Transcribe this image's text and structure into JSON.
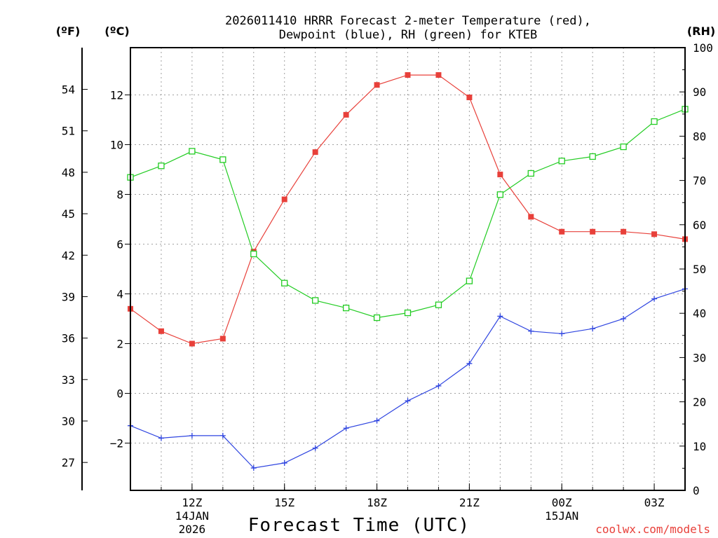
{
  "chart_data": {
    "type": "line",
    "title_line1": "2026011410 HRRR Forecast 2-meter Temperature (red),",
    "title_line2": "Dewpoint (blue), RH (green) for KTEB",
    "xlabel": "Forecast Time (UTC)",
    "credit": "coolwx.com/models",
    "unit_f": "(ºF)",
    "unit_c": "(ºC)",
    "unit_rh": "(RH)",
    "x_hours": [
      10,
      11,
      12,
      13,
      14,
      15,
      16,
      17,
      18,
      19,
      20,
      21,
      22,
      23,
      24,
      25,
      26,
      27,
      28
    ],
    "xlim": [
      10,
      28
    ],
    "ylim_c": [
      -3.9,
      13.9
    ],
    "ylim_rh": [
      0,
      100
    ],
    "x_ticks": [
      {
        "hour": 12,
        "label": "12Z",
        "date": "14JAN",
        "year": "2026"
      },
      {
        "hour": 15,
        "label": "15Z",
        "date": "",
        "year": ""
      },
      {
        "hour": 18,
        "label": "18Z",
        "date": "",
        "year": ""
      },
      {
        "hour": 21,
        "label": "21Z",
        "date": "",
        "year": ""
      },
      {
        "hour": 24,
        "label": "00Z",
        "date": "15JAN",
        "year": ""
      },
      {
        "hour": 27,
        "label": "03Z",
        "date": "",
        "year": ""
      }
    ],
    "c_ticks": [
      {
        "value": -2,
        "label": "−2"
      },
      {
        "value": 0,
        "label": "0"
      },
      {
        "value": 2,
        "label": "2"
      },
      {
        "value": 4,
        "label": "4"
      },
      {
        "value": 6,
        "label": "6"
      },
      {
        "value": 8,
        "label": "8"
      },
      {
        "value": 10,
        "label": "10"
      },
      {
        "value": 12,
        "label": "12"
      }
    ],
    "f_ticks": [
      {
        "value": 27,
        "label": "27"
      },
      {
        "value": 30,
        "label": "30"
      },
      {
        "value": 33,
        "label": "33"
      },
      {
        "value": 36,
        "label": "36"
      },
      {
        "value": 39,
        "label": "39"
      },
      {
        "value": 42,
        "label": "42"
      },
      {
        "value": 45,
        "label": "45"
      },
      {
        "value": 48,
        "label": "48"
      },
      {
        "value": 51,
        "label": "51"
      },
      {
        "value": 54,
        "label": "54"
      }
    ],
    "rh_ticks": [
      {
        "value": 0,
        "label": "0"
      },
      {
        "value": 10,
        "label": "10"
      },
      {
        "value": 20,
        "label": "20"
      },
      {
        "value": 30,
        "label": "30"
      },
      {
        "value": 40,
        "label": "40"
      },
      {
        "value": 50,
        "label": "50"
      },
      {
        "value": 60,
        "label": "60"
      },
      {
        "value": 70,
        "label": "70"
      },
      {
        "value": 80,
        "label": "80"
      },
      {
        "value": 90,
        "label": "90"
      },
      {
        "value": 100,
        "label": "100"
      }
    ],
    "series": [
      {
        "name": "Temperature",
        "axis": "c",
        "color": "#e8403a",
        "marker": "filled-square",
        "values": [
          3.4,
          2.5,
          2.0,
          2.2,
          5.7,
          7.8,
          9.7,
          11.2,
          12.4,
          12.8,
          12.8,
          11.9,
          8.8,
          7.1,
          6.5,
          6.5,
          6.5,
          6.4,
          6.2
        ]
      },
      {
        "name": "Dewpoint",
        "axis": "c",
        "color": "#2f45e0",
        "marker": "plus",
        "values": [
          -1.3,
          -1.8,
          -1.7,
          -1.7,
          -3.0,
          -2.8,
          -2.2,
          -1.4,
          -1.1,
          -0.3,
          0.3,
          1.2,
          3.1,
          2.5,
          2.4,
          2.6,
          3.0,
          3.8,
          4.2
        ]
      },
      {
        "name": "RH",
        "axis": "rh",
        "color": "#22cc22",
        "marker": "open-square",
        "values": [
          70.7,
          73.3,
          76.6,
          74.7,
          53.4,
          46.8,
          42.9,
          41.2,
          39.0,
          40.1,
          41.9,
          47.3,
          66.8,
          71.6,
          74.4,
          75.4,
          77.6,
          83.3,
          86.1
        ]
      }
    ]
  }
}
